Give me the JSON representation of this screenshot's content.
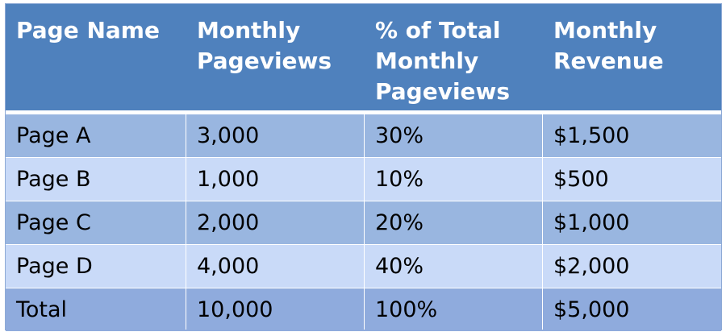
{
  "table": {
    "headers": [
      "Page Name",
      "Monthly\nPageviews",
      "% of Total\nMonthly\nPageviews",
      "Monthly\nRevenue"
    ],
    "rows": [
      [
        "Page A",
        "3,000",
        "30%",
        "$1,500"
      ],
      [
        "Page B",
        "1,000",
        "10%",
        "$500"
      ],
      [
        "Page C",
        "2,000",
        "20%",
        "$1,000"
      ],
      [
        "Page D",
        "4,000",
        "40%",
        "$2,000"
      ],
      [
        "Total",
        "10,000",
        "100%",
        "$5,000"
      ]
    ]
  },
  "colors": {
    "header_bg": "#4f81bd",
    "row_dark": "#99b6e0",
    "row_light": "#c9daf8",
    "total_row": "#8fabdd"
  }
}
